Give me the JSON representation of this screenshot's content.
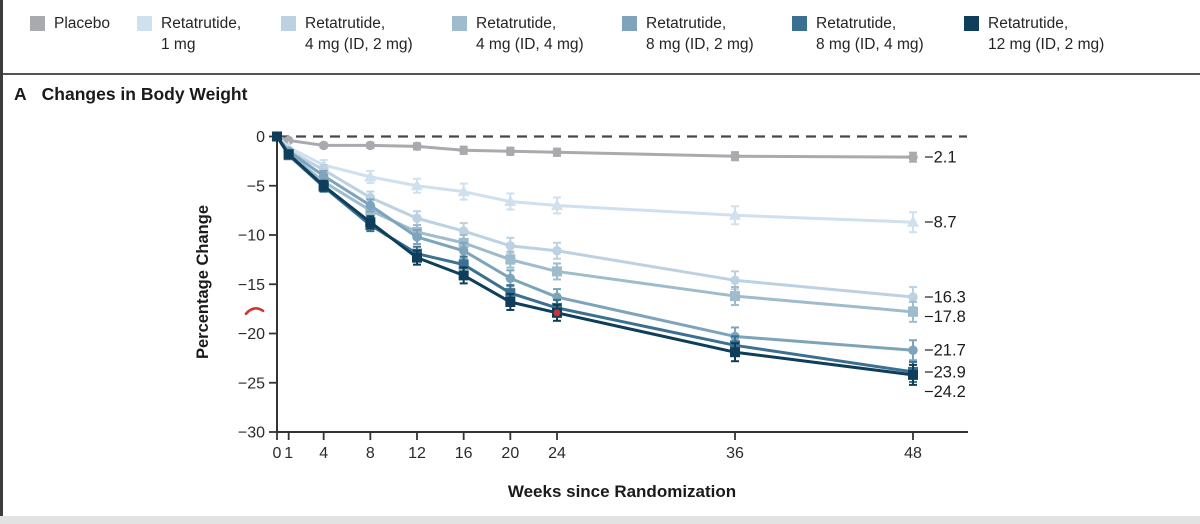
{
  "window": {
    "panel_letter": "A",
    "panel_title": "Changes in Body Weight"
  },
  "legend": {
    "items": [
      {
        "id": "placebo",
        "line1": "Placebo",
        "line2": "",
        "color": "#a8aaad"
      },
      {
        "id": "reta-1mg",
        "line1": "Retatrutide,",
        "line2": "1 mg",
        "color": "#cfe0ee"
      },
      {
        "id": "reta-4mg-id2",
        "line1": "Retatrutide,",
        "line2": "4 mg (ID, 2 mg)",
        "color": "#bcd2e2"
      },
      {
        "id": "reta-4mg-id4",
        "line1": "Retatrutide,",
        "line2": "4 mg (ID, 4 mg)",
        "color": "#9fbccd"
      },
      {
        "id": "reta-8mg-id2",
        "line1": "Retatrutide,",
        "line2": "8 mg (ID, 2 mg)",
        "color": "#7da4bb"
      },
      {
        "id": "reta-8mg-id4",
        "line1": "Retatrutide,",
        "line2": "8 mg (ID, 4 mg)",
        "color": "#3c7090"
      },
      {
        "id": "reta-12mg-id2",
        "line1": "Retatrutide,",
        "line2": "12 mg (ID, 2 mg)",
        "color": "#0e3e5a"
      }
    ]
  },
  "chart_data": {
    "type": "line",
    "title": "Changes in Body Weight",
    "xlabel": "Weeks since Randomization",
    "ylabel": "Percentage Change",
    "x": [
      0,
      1,
      4,
      8,
      12,
      16,
      20,
      24,
      36,
      48
    ],
    "xtick_labels": [
      "0",
      "1",
      "4",
      "8",
      "12",
      "16",
      "20",
      "24",
      "36",
      "48"
    ],
    "yticks": [
      0,
      -5,
      -10,
      -15,
      -20,
      -25,
      -30
    ],
    "ytick_labels": [
      "0",
      "−5",
      "−10",
      "−15",
      "−20",
      "−25",
      "−30"
    ],
    "ylim": [
      -30,
      0
    ],
    "zero_reference_line": "dashed",
    "legend_position": "top",
    "grid": false,
    "error_bars": true,
    "series": [
      {
        "name": "Placebo",
        "marker": "circle",
        "color": "#a8aaad",
        "values": [
          0,
          -0.4,
          -0.9,
          -0.9,
          -1.0,
          -1.4,
          -1.5,
          -1.6,
          -2.0,
          -2.1
        ],
        "end_label": "−2.1"
      },
      {
        "name": "Retatrutide, 1 mg",
        "marker": "triangle",
        "color": "#cfe0ee",
        "values": [
          0,
          -1.1,
          -2.9,
          -4.1,
          -5.0,
          -5.6,
          -6.6,
          -7.0,
          -8.0,
          -8.7
        ],
        "end_label": "−8.7"
      },
      {
        "name": "Retatrutide, 4 mg (ID, 2 mg)",
        "marker": "circle",
        "color": "#bcd2e2",
        "values": [
          0,
          -1.4,
          -3.4,
          -6.2,
          -8.3,
          -9.6,
          -11.1,
          -11.6,
          -14.6,
          -16.3
        ],
        "end_label": "−16.3"
      },
      {
        "name": "Retatrutide, 4 mg (ID, 4 mg)",
        "marker": "square",
        "color": "#9fbccd",
        "values": [
          0,
          -1.7,
          -4.6,
          -7.5,
          -9.7,
          -10.8,
          -12.5,
          -13.7,
          -16.2,
          -17.8
        ],
        "end_label": "−17.8"
      },
      {
        "name": "Retatrutide, 8 mg (ID, 2 mg)",
        "marker": "circle",
        "color": "#7da4bb",
        "values": [
          0,
          -1.5,
          -4.0,
          -7.0,
          -10.2,
          -11.6,
          -14.4,
          -16.3,
          -20.3,
          -21.7
        ],
        "end_label": "−21.7"
      },
      {
        "name": "Retatrutide, 8 mg (ID, 4 mg)",
        "marker": "square",
        "color": "#3c7090",
        "values": [
          0,
          -1.9,
          -5.1,
          -9.0,
          -11.9,
          -13.0,
          -15.9,
          -17.4,
          -21.2,
          -23.9
        ],
        "end_label": "−23.9"
      },
      {
        "name": "Retatrutide, 12 mg (ID, 2 mg)",
        "marker": "square",
        "color": "#0e3e5a",
        "values": [
          0,
          -1.8,
          -5.0,
          -8.7,
          -12.3,
          -14.1,
          -16.8,
          -17.9,
          -21.9,
          -24.2
        ],
        "end_label": "−24.2"
      }
    ],
    "annotations": {
      "red_axis_mark_value": -17.8,
      "red_point": {
        "week": 24,
        "value": -17.9,
        "series": "Retatrutide, 12 mg (ID, 2 mg)"
      },
      "red_color": "#cc3434"
    }
  }
}
